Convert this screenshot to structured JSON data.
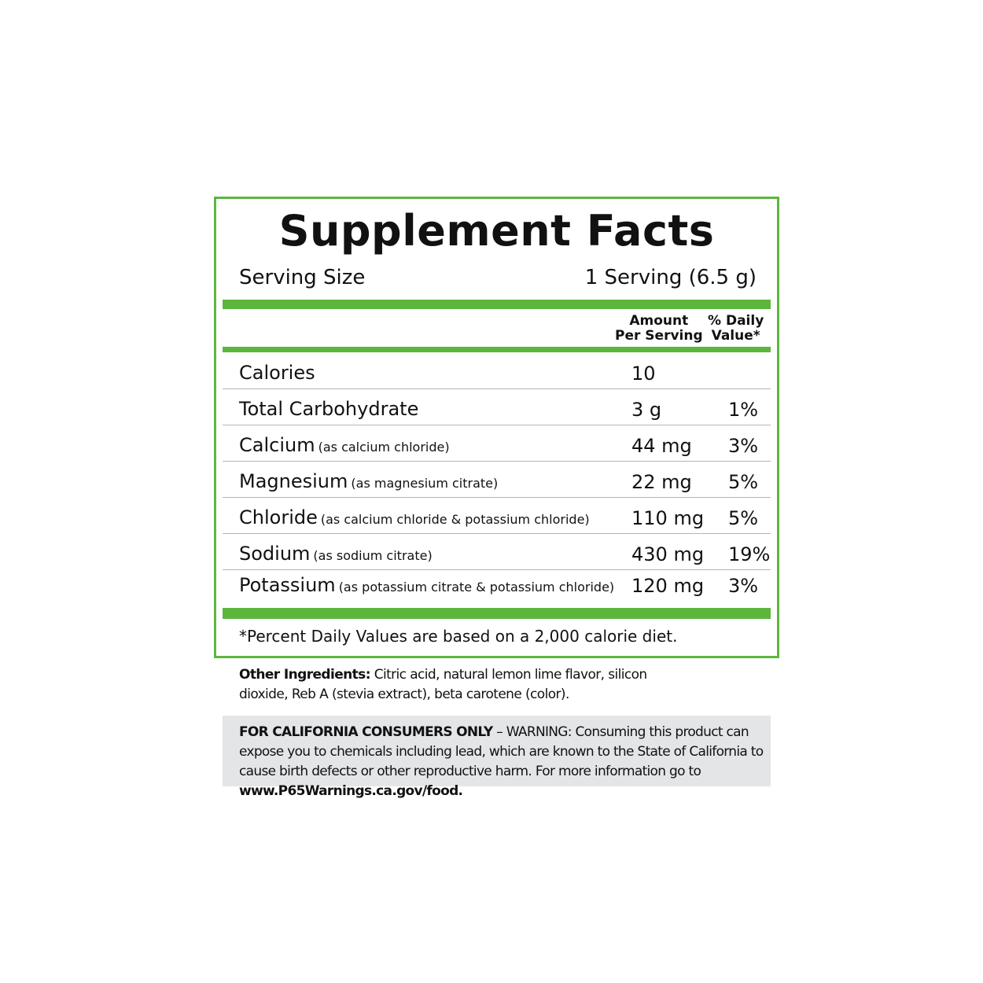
{
  "title": "Supplement Facts",
  "serving_size": {
    "label": "Serving Size",
    "value": "1 Serving (6.5 g)"
  },
  "header": {
    "amount_line1": "Amount",
    "amount_line2": "Per Serving",
    "dv_line1": "% Daily",
    "dv_line2": "Value*"
  },
  "rows": [
    {
      "name": "Calories",
      "note": "",
      "amount": "10",
      "dv": ""
    },
    {
      "name": "Total Carbohydrate",
      "note": "",
      "amount": "3 g",
      "dv": "1%"
    },
    {
      "name": "Calcium",
      "note": "(as calcium chloride)",
      "amount": "44 mg",
      "dv": "3%"
    },
    {
      "name": "Magnesium",
      "note": "(as magnesium citrate)",
      "amount": "22 mg",
      "dv": "5%"
    },
    {
      "name": "Chloride",
      "note": "(as calcium chloride & potassium chloride)",
      "amount": "110 mg",
      "dv": "5%"
    },
    {
      "name": "Sodium",
      "note": "(as sodium citrate)",
      "amount": "430 mg",
      "dv": "19%"
    },
    {
      "name": "Potassium",
      "note": "(as potassium citrate & potassium chloride)",
      "amount": "120 mg",
      "dv": "3%"
    }
  ],
  "footnote": "*Percent Daily Values are based on a 2,000 calorie diet.",
  "other_ingredients": {
    "label": "Other Ingredients:",
    "text": " Citric acid, natural lemon lime flavor, silicon dioxide, Reb A (stevia extract), beta carotene (color)."
  },
  "warning": {
    "bold": "FOR CALIFORNIA CONSUMERS ONLY",
    "text": " – WARNING: Consuming this product can expose you to chemicals including lead, which are known to the State of California to cause birth defects or other reproductive harm. For more information go to ",
    "link": "www.P65Warnings.ca.gov/food."
  },
  "colors": {
    "accent": "#5db63c",
    "warning_bg": "#e4e5e7"
  }
}
